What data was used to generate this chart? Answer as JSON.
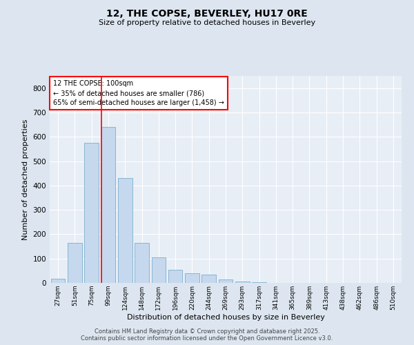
{
  "title": "12, THE COPSE, BEVERLEY, HU17 0RE",
  "subtitle": "Size of property relative to detached houses in Beverley",
  "xlabel": "Distribution of detached houses by size in Beverley",
  "ylabel": "Number of detached properties",
  "categories": [
    "27sqm",
    "51sqm",
    "75sqm",
    "99sqm",
    "124sqm",
    "148sqm",
    "172sqm",
    "196sqm",
    "220sqm",
    "244sqm",
    "269sqm",
    "293sqm",
    "317sqm",
    "341sqm",
    "365sqm",
    "389sqm",
    "413sqm",
    "438sqm",
    "462sqm",
    "486sqm",
    "510sqm"
  ],
  "values": [
    18,
    165,
    575,
    640,
    430,
    165,
    105,
    55,
    40,
    35,
    15,
    5,
    3,
    1,
    0,
    0,
    0,
    0,
    0,
    0,
    0
  ],
  "bar_color": "#c5d8ee",
  "bar_edge_color": "#7aaecc",
  "red_line_index": 3,
  "annotation_line1": "12 THE COPSE: 100sqm",
  "annotation_line2": "← 35% of detached houses are smaller (786)",
  "annotation_line3": "65% of semi-detached houses are larger (1,458) →",
  "annotation_box_color": "white",
  "annotation_box_edge_color": "red",
  "ylim": [
    0,
    850
  ],
  "yticks": [
    0,
    100,
    200,
    300,
    400,
    500,
    600,
    700,
    800
  ],
  "background_color": "#dde6f0",
  "plot_bg_color": "#e8eef6",
  "grid_color": "white",
  "footer_line1": "Contains HM Land Registry data © Crown copyright and database right 2025.",
  "footer_line2": "Contains public sector information licensed under the Open Government Licence v3.0."
}
